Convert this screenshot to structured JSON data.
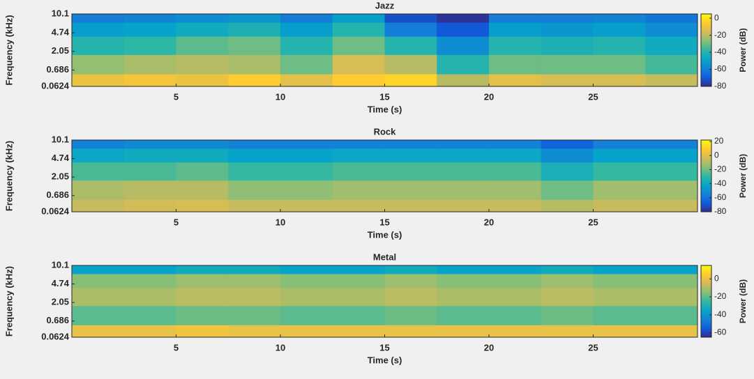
{
  "chart_data": [
    {
      "type": "heatmap",
      "title": "Jazz",
      "xlabel": "Time (s)",
      "ylabel": "Frequency (kHz)",
      "colormap": "parula",
      "yscale": "mel",
      "x": [
        1.25,
        3.75,
        6.25,
        8.75,
        11.25,
        13.75,
        16.25,
        18.75,
        21.25,
        23.75,
        26.25,
        28.75
      ],
      "y": [
        0.15,
        1.0,
        2.8,
        5.8,
        9.0
      ],
      "z": [
        [
          -10,
          -8,
          -10,
          -5,
          -12,
          -5,
          -3,
          -20,
          -12,
          -15,
          -15,
          -18
        ],
        [
          -25,
          -22,
          -20,
          -22,
          -30,
          -15,
          -20,
          -40,
          -30,
          -30,
          -30,
          -35
        ],
        [
          -40,
          -38,
          -32,
          -30,
          -40,
          -30,
          -40,
          -55,
          -40,
          -42,
          -40,
          -45
        ],
        [
          -50,
          -48,
          -45,
          -42,
          -50,
          -40,
          -60,
          -70,
          -50,
          -52,
          -50,
          -55
        ],
        [
          -60,
          -58,
          -55,
          -52,
          -60,
          -50,
          -72,
          -78,
          -60,
          -60,
          -58,
          -62
        ]
      ],
      "xlim": [
        0,
        30
      ],
      "xticks": [
        5,
        10,
        15,
        20,
        25
      ],
      "ylim": [
        0.0624,
        10.1
      ],
      "yticks": [
        0.0624,
        0.686,
        2.05,
        4.74,
        10.1
      ],
      "colorbar": {
        "label": "Power (dB)",
        "clim": [
          -80,
          5
        ],
        "cticks": [
          0,
          -20,
          -40,
          -60,
          -80
        ]
      }
    },
    {
      "type": "heatmap",
      "title": "Rock",
      "xlabel": "Time (s)",
      "ylabel": "Frequency (kHz)",
      "colormap": "parula",
      "yscale": "mel",
      "x": [
        1.25,
        3.75,
        6.25,
        8.75,
        11.25,
        13.75,
        16.25,
        18.75,
        21.25,
        23.75,
        26.25,
        28.75
      ],
      "y": [
        0.15,
        1.0,
        2.8,
        5.8,
        9.0
      ],
      "z": [
        [
          -5,
          -3,
          -2,
          -5,
          -5,
          -5,
          -5,
          -5,
          -5,
          -8,
          -5,
          -5
        ],
        [
          -10,
          -8,
          -8,
          -15,
          -15,
          -12,
          -12,
          -12,
          -12,
          -20,
          -12,
          -12
        ],
        [
          -25,
          -25,
          -22,
          -28,
          -28,
          -25,
          -25,
          -25,
          -25,
          -35,
          -28,
          -28
        ],
        [
          -40,
          -38,
          -38,
          -42,
          -42,
          -40,
          -40,
          -40,
          -40,
          -50,
          -42,
          -42
        ],
        [
          -55,
          -52,
          -52,
          -55,
          -55,
          -55,
          -55,
          -55,
          -55,
          -65,
          -55,
          -55
        ]
      ],
      "xlim": [
        0,
        30
      ],
      "xticks": [
        5,
        10,
        15,
        20,
        25
      ],
      "ylim": [
        0.0624,
        10.1
      ],
      "yticks": [
        0.0624,
        0.686,
        2.05,
        4.74,
        10.1
      ],
      "colorbar": {
        "label": "Power (dB)",
        "clim": [
          -80,
          22
        ],
        "cticks": [
          20,
          0,
          -20,
          -40,
          -60,
          -80
        ]
      }
    },
    {
      "type": "heatmap",
      "title": "Metal",
      "xlabel": "Time (s)",
      "ylabel": "Frequency (kHz)",
      "colormap": "parula",
      "yscale": "mel",
      "x": [
        1.25,
        3.75,
        6.25,
        8.75,
        11.25,
        13.75,
        16.25,
        18.75,
        21.25,
        23.75,
        26.25,
        28.75
      ],
      "y": [
        0.15,
        1.0,
        2.8,
        5.8,
        9.0
      ],
      "z": [
        [
          0,
          0,
          2,
          0,
          0,
          0,
          0,
          0,
          0,
          0,
          0,
          0
        ],
        [
          -20,
          -20,
          -18,
          -18,
          -20,
          -20,
          -18,
          -20,
          -20,
          -18,
          -20,
          -20
        ],
        [
          -10,
          -10,
          -8,
          -8,
          -10,
          -10,
          -8,
          -10,
          -10,
          -8,
          -10,
          -10
        ],
        [
          -15,
          -15,
          -12,
          -12,
          -15,
          -15,
          -12,
          -15,
          -15,
          -12,
          -15,
          -15
        ],
        [
          -35,
          -35,
          -32,
          -32,
          -35,
          -35,
          -32,
          -35,
          -35,
          -32,
          -35,
          -35
        ]
      ],
      "xlim": [
        0,
        30
      ],
      "xticks": [
        5,
        10,
        15,
        20,
        25
      ],
      "ylim": [
        0.0624,
        10.1
      ],
      "yticks": [
        0.0624,
        0.686,
        2.05,
        4.74,
        10.1
      ],
      "colorbar": {
        "label": "Power (dB)",
        "clim": [
          -65,
          15
        ],
        "cticks": [
          0,
          -20,
          -40,
          -60
        ]
      }
    }
  ]
}
